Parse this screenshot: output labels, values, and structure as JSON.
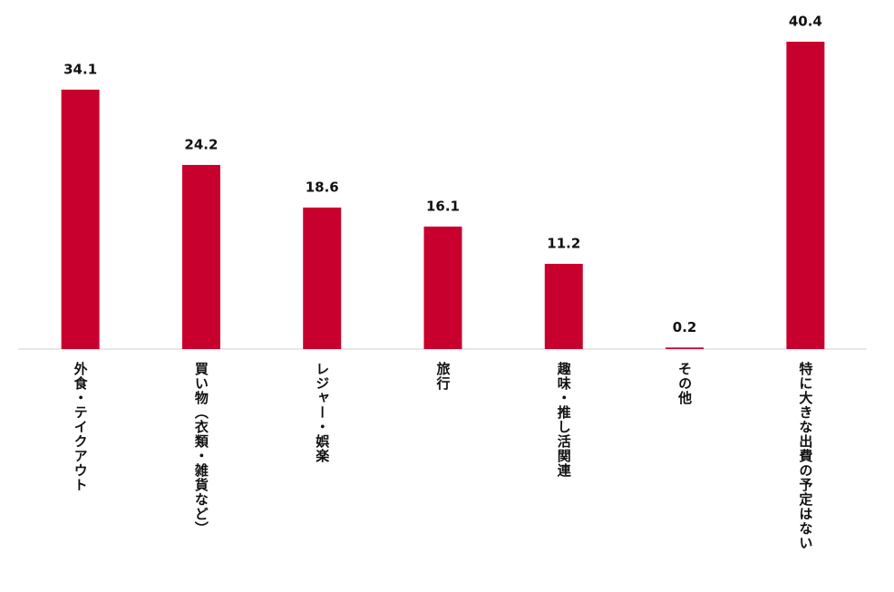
{
  "chart_data": {
    "type": "bar",
    "categories": [
      "外食・テイクアウト",
      "買い物（衣類・雑貨など）",
      "レジャー・娯楽",
      "旅行",
      "趣味・推し活関連",
      "その他",
      "特に大きな出費の予定はない"
    ],
    "values": [
      34.1,
      24.2,
      18.6,
      16.1,
      11.2,
      0.2,
      40.4
    ],
    "color": "#c8002d"
  }
}
